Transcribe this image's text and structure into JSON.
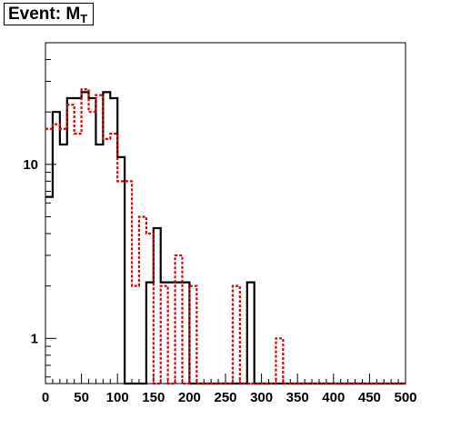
{
  "title": {
    "main": "Event: M",
    "subscript": "T"
  },
  "chart_data": {
    "type": "histogram",
    "title": "Event: M_T",
    "xlabel": "",
    "ylabel": "",
    "xlim": [
      0,
      500
    ],
    "ylim": [
      0.55,
      50
    ],
    "yscale": "log",
    "grid": false,
    "x_ticks": [
      0,
      50,
      100,
      150,
      200,
      250,
      300,
      350,
      400,
      450,
      500
    ],
    "y_ticks": [
      1,
      10
    ],
    "bin_width": 10,
    "bin_edges_start": 0,
    "series": [
      {
        "style": "solid",
        "color": "#000000",
        "values": [
          6.5,
          20,
          13,
          24,
          24,
          26,
          24,
          13,
          26,
          24,
          11,
          0,
          0,
          0,
          2.1,
          4.3,
          2.1,
          2.1,
          2.1,
          2.1,
          0,
          0,
          0,
          0,
          0,
          0,
          0,
          0,
          2.1,
          0,
          0,
          0,
          0,
          0,
          0,
          0,
          0,
          0,
          0,
          0,
          0,
          0,
          0,
          0,
          0,
          0,
          0,
          0,
          0,
          0
        ]
      },
      {
        "style": "dotted",
        "color": "#e00000",
        "values": [
          16,
          17,
          16,
          22,
          15,
          27,
          20,
          25,
          14,
          15,
          8,
          8,
          2,
          5,
          4,
          0.5,
          2,
          0.5,
          3,
          0.5,
          2,
          0,
          0,
          0,
          0,
          0,
          2,
          0,
          0,
          0,
          0,
          0,
          1,
          0,
          0,
          0,
          0,
          0,
          0,
          0,
          0,
          0,
          0,
          0,
          0,
          0,
          0,
          0,
          0,
          0
        ]
      }
    ]
  }
}
